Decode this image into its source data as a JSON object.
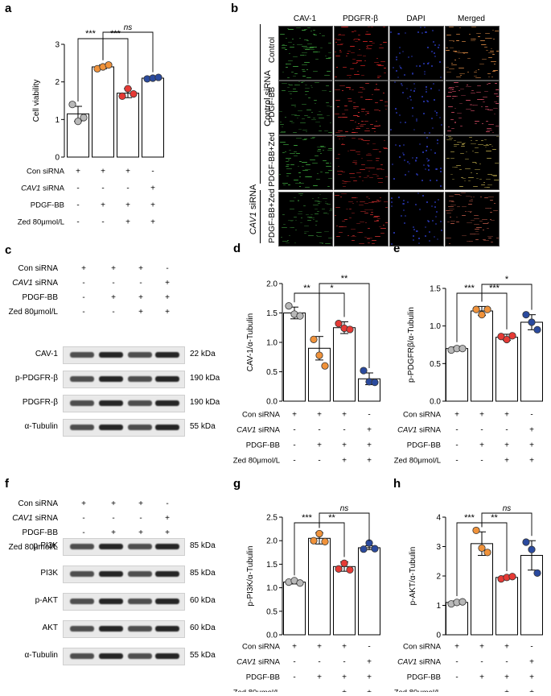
{
  "panels": {
    "a": "a",
    "b": "b",
    "c": "c",
    "d": "d",
    "e": "e",
    "f": "f",
    "g": "g",
    "h": "h"
  },
  "conditions": {
    "con_sirna": "Con siRNA",
    "cav1_sirna_italic": "CAV1",
    "cav1_sirna_suffix": " siRNA",
    "pdgf_bb": "PDGF-BB",
    "zed": "Zed 80μmol/L"
  },
  "signs": {
    "con_sirna": [
      "+",
      "+",
      "+",
      "-"
    ],
    "cav1_sirna": [
      "-",
      "-",
      "-",
      "+"
    ],
    "pdgf_bb": [
      "-",
      "+",
      "+",
      "+"
    ],
    "zed": [
      "-",
      "-",
      "+",
      "+"
    ]
  },
  "colors": {
    "group1": "#b8b8b8",
    "group2": "#f0923a",
    "group3": "#e63a35",
    "group4": "#2a4a9e"
  },
  "microscopy": {
    "columns": [
      "CAV-1",
      "PDGFR-β",
      "DAPI",
      "Merged"
    ],
    "row_labels": [
      "Control",
      "PDGF-BB",
      "PDGF-BB+Zed",
      "PDGF-BB+Zed"
    ],
    "group_labels": {
      "control_sirna": "Control siRNA",
      "cav1_italic": "CAV1",
      "cav1_suffix": " siRNA"
    }
  },
  "blots_c": [
    {
      "label": "CAV-1",
      "kda": "22 kDa"
    },
    {
      "label": "p-PDGFR-β",
      "kda": "190 kDa"
    },
    {
      "label": "PDGFR-β",
      "kda": "190 kDa"
    },
    {
      "label": "α-Tubulin",
      "kda": "55 kDa"
    }
  ],
  "blots_f": [
    {
      "label": "p-PI3K",
      "kda": "85 kDa"
    },
    {
      "label": "PI3K",
      "kda": "85 kDa"
    },
    {
      "label": "p-AKT",
      "kda": "60 kDa"
    },
    {
      "label": "AKT",
      "kda": "60 kDa"
    },
    {
      "label": "α-Tubulin",
      "kda": "55 kDa"
    }
  ],
  "chart_data": [
    {
      "panel": "a",
      "type": "bar",
      "ylabel": "Cell viability",
      "ylim": [
        0,
        3
      ],
      "yticks": [
        0,
        1,
        2,
        3
      ],
      "values": [
        1.15,
        2.4,
        1.7,
        2.1
      ],
      "errors": [
        0.2,
        0.05,
        0.12,
        0.03
      ],
      "points": [
        [
          1.4,
          0.95,
          1.05
        ],
        [
          2.35,
          2.4,
          2.45
        ],
        [
          1.62,
          1.82,
          1.68
        ],
        [
          2.08,
          2.1,
          2.12
        ]
      ],
      "significance": [
        {
          "from": 0,
          "to": 1,
          "label": "***"
        },
        {
          "from": 1,
          "to": 2,
          "label": "***"
        },
        {
          "from": 1,
          "to": 3,
          "label": "ns"
        }
      ]
    },
    {
      "panel": "d",
      "type": "bar",
      "ylabel": "CAV-1/α-Tubulin",
      "ylim": [
        0,
        2.0
      ],
      "yticks": [
        0.0,
        0.5,
        1.0,
        1.5,
        2.0
      ],
      "values": [
        1.5,
        0.9,
        1.25,
        0.38
      ],
      "errors": [
        0.1,
        0.2,
        0.1,
        0.1
      ],
      "points": [
        [
          1.62,
          1.48,
          1.45
        ],
        [
          1.05,
          0.78,
          0.6
        ],
        [
          1.32,
          1.24,
          1.22
        ],
        [
          0.52,
          0.33,
          0.32
        ]
      ],
      "significance": [
        {
          "from": 0,
          "to": 1,
          "label": "**"
        },
        {
          "from": 1,
          "to": 2,
          "label": "*"
        },
        {
          "from": 1,
          "to": 3,
          "label": "**"
        }
      ]
    },
    {
      "panel": "e",
      "type": "bar",
      "ylabel": "p-PDGFRβ/α-Tubulin",
      "ylim": [
        0,
        1.5
      ],
      "yticks": [
        0.0,
        0.5,
        1.0,
        1.5
      ],
      "values": [
        0.7,
        1.2,
        0.85,
        1.05
      ],
      "errors": [
        0.02,
        0.06,
        0.04,
        0.1
      ],
      "points": [
        [
          0.68,
          0.7,
          0.7
        ],
        [
          1.22,
          1.15,
          1.22
        ],
        [
          0.86,
          0.82,
          0.87
        ],
        [
          1.15,
          1.05,
          0.95
        ]
      ],
      "significance": [
        {
          "from": 0,
          "to": 1,
          "label": "***"
        },
        {
          "from": 1,
          "to": 2,
          "label": "***"
        },
        {
          "from": 1,
          "to": 3,
          "label": "*"
        }
      ]
    },
    {
      "panel": "g",
      "type": "bar",
      "ylabel": "p-PI3K/α-Tubulin",
      "ylim": [
        0,
        2.5
      ],
      "yticks": [
        0.0,
        0.5,
        1.0,
        1.5,
        2.0,
        2.5
      ],
      "values": [
        1.12,
        2.05,
        1.45,
        1.85
      ],
      "errors": [
        0.04,
        0.12,
        0.1,
        0.04
      ],
      "points": [
        [
          1.12,
          1.15,
          1.1
        ],
        [
          2.0,
          2.15,
          1.98
        ],
        [
          1.4,
          1.52,
          1.38
        ],
        [
          1.82,
          1.95,
          1.83
        ]
      ],
      "significance": [
        {
          "from": 0,
          "to": 1,
          "label": "***"
        },
        {
          "from": 1,
          "to": 2,
          "label": "**"
        },
        {
          "from": 1,
          "to": 3,
          "label": "ns"
        }
      ]
    },
    {
      "panel": "h",
      "type": "bar",
      "ylabel": "p-AKT/α-Tubulin",
      "ylim": [
        0,
        4
      ],
      "yticks": [
        0,
        1,
        2,
        3,
        4
      ],
      "values": [
        1.1,
        3.1,
        1.95,
        2.7
      ],
      "errors": [
        0.05,
        0.4,
        0.05,
        0.5
      ],
      "points": [
        [
          1.05,
          1.1,
          1.12
        ],
        [
          3.55,
          2.95,
          2.8
        ],
        [
          1.9,
          1.95,
          1.98
        ],
        [
          3.15,
          2.9,
          2.1
        ]
      ],
      "significance": [
        {
          "from": 0,
          "to": 1,
          "label": "***"
        },
        {
          "from": 1,
          "to": 2,
          "label": "**"
        },
        {
          "from": 1,
          "to": 3,
          "label": "ns"
        }
      ]
    }
  ]
}
